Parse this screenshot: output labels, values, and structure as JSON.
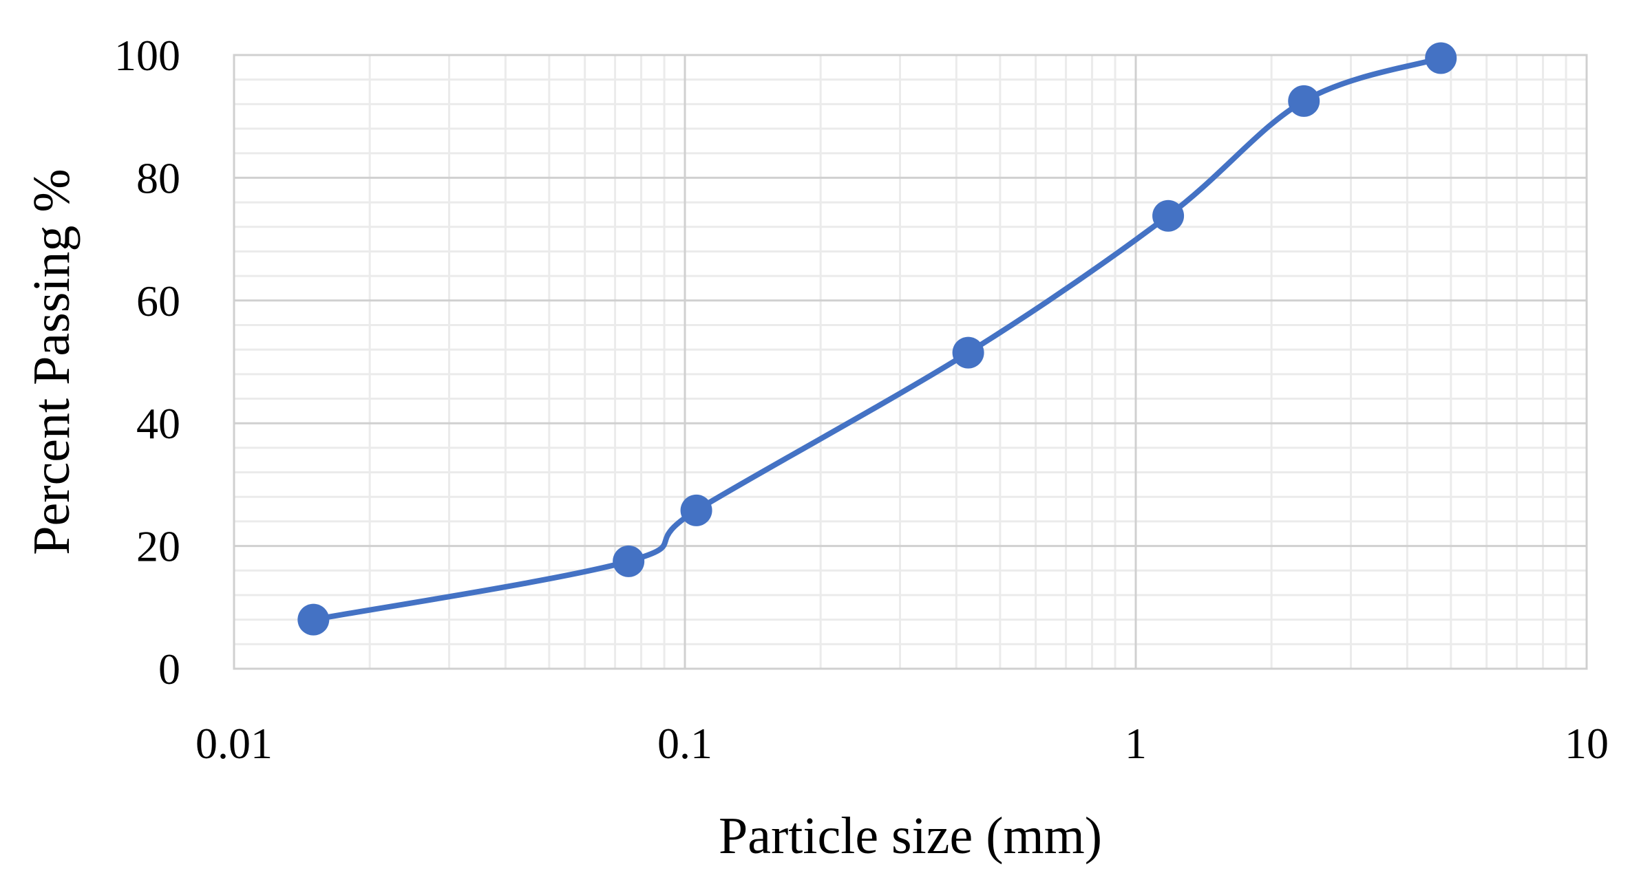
{
  "chart_data": {
    "type": "scatter",
    "title": "",
    "xlabel": "Particle size (mm)",
    "ylabel": "Percent Passing %",
    "x_scale": "log",
    "xlim": [
      0.01,
      10
    ],
    "ylim": [
      0,
      100
    ],
    "x_major_ticks": [
      0.01,
      0.1,
      1,
      10
    ],
    "x_tick_labels": [
      "0.01",
      "0.1",
      "1",
      "10"
    ],
    "y_major_ticks": [
      0,
      20,
      40,
      60,
      80,
      100
    ],
    "y_tick_labels": [
      "0",
      "20",
      "40",
      "60",
      "80",
      "100"
    ],
    "y_minor_step": 4,
    "grid": true,
    "legend": "none",
    "line_style": "smoothed",
    "series": [
      {
        "points": [
          {
            "x": 0.015,
            "y": 8
          },
          {
            "x": 0.075,
            "y": 17.5
          },
          {
            "x": 0.106,
            "y": 25.8
          },
          {
            "x": 0.425,
            "y": 51.5
          },
          {
            "x": 1.18,
            "y": 73.8
          },
          {
            "x": 2.36,
            "y": 92.5
          },
          {
            "x": 4.75,
            "y": 99.5
          }
        ]
      }
    ]
  },
  "colors": {
    "series": "#4472C4",
    "major_grid": "#D0D0D0",
    "minor_grid": "#EBEBEB",
    "plot_border": "#D0D0D0",
    "text": "#000000"
  }
}
